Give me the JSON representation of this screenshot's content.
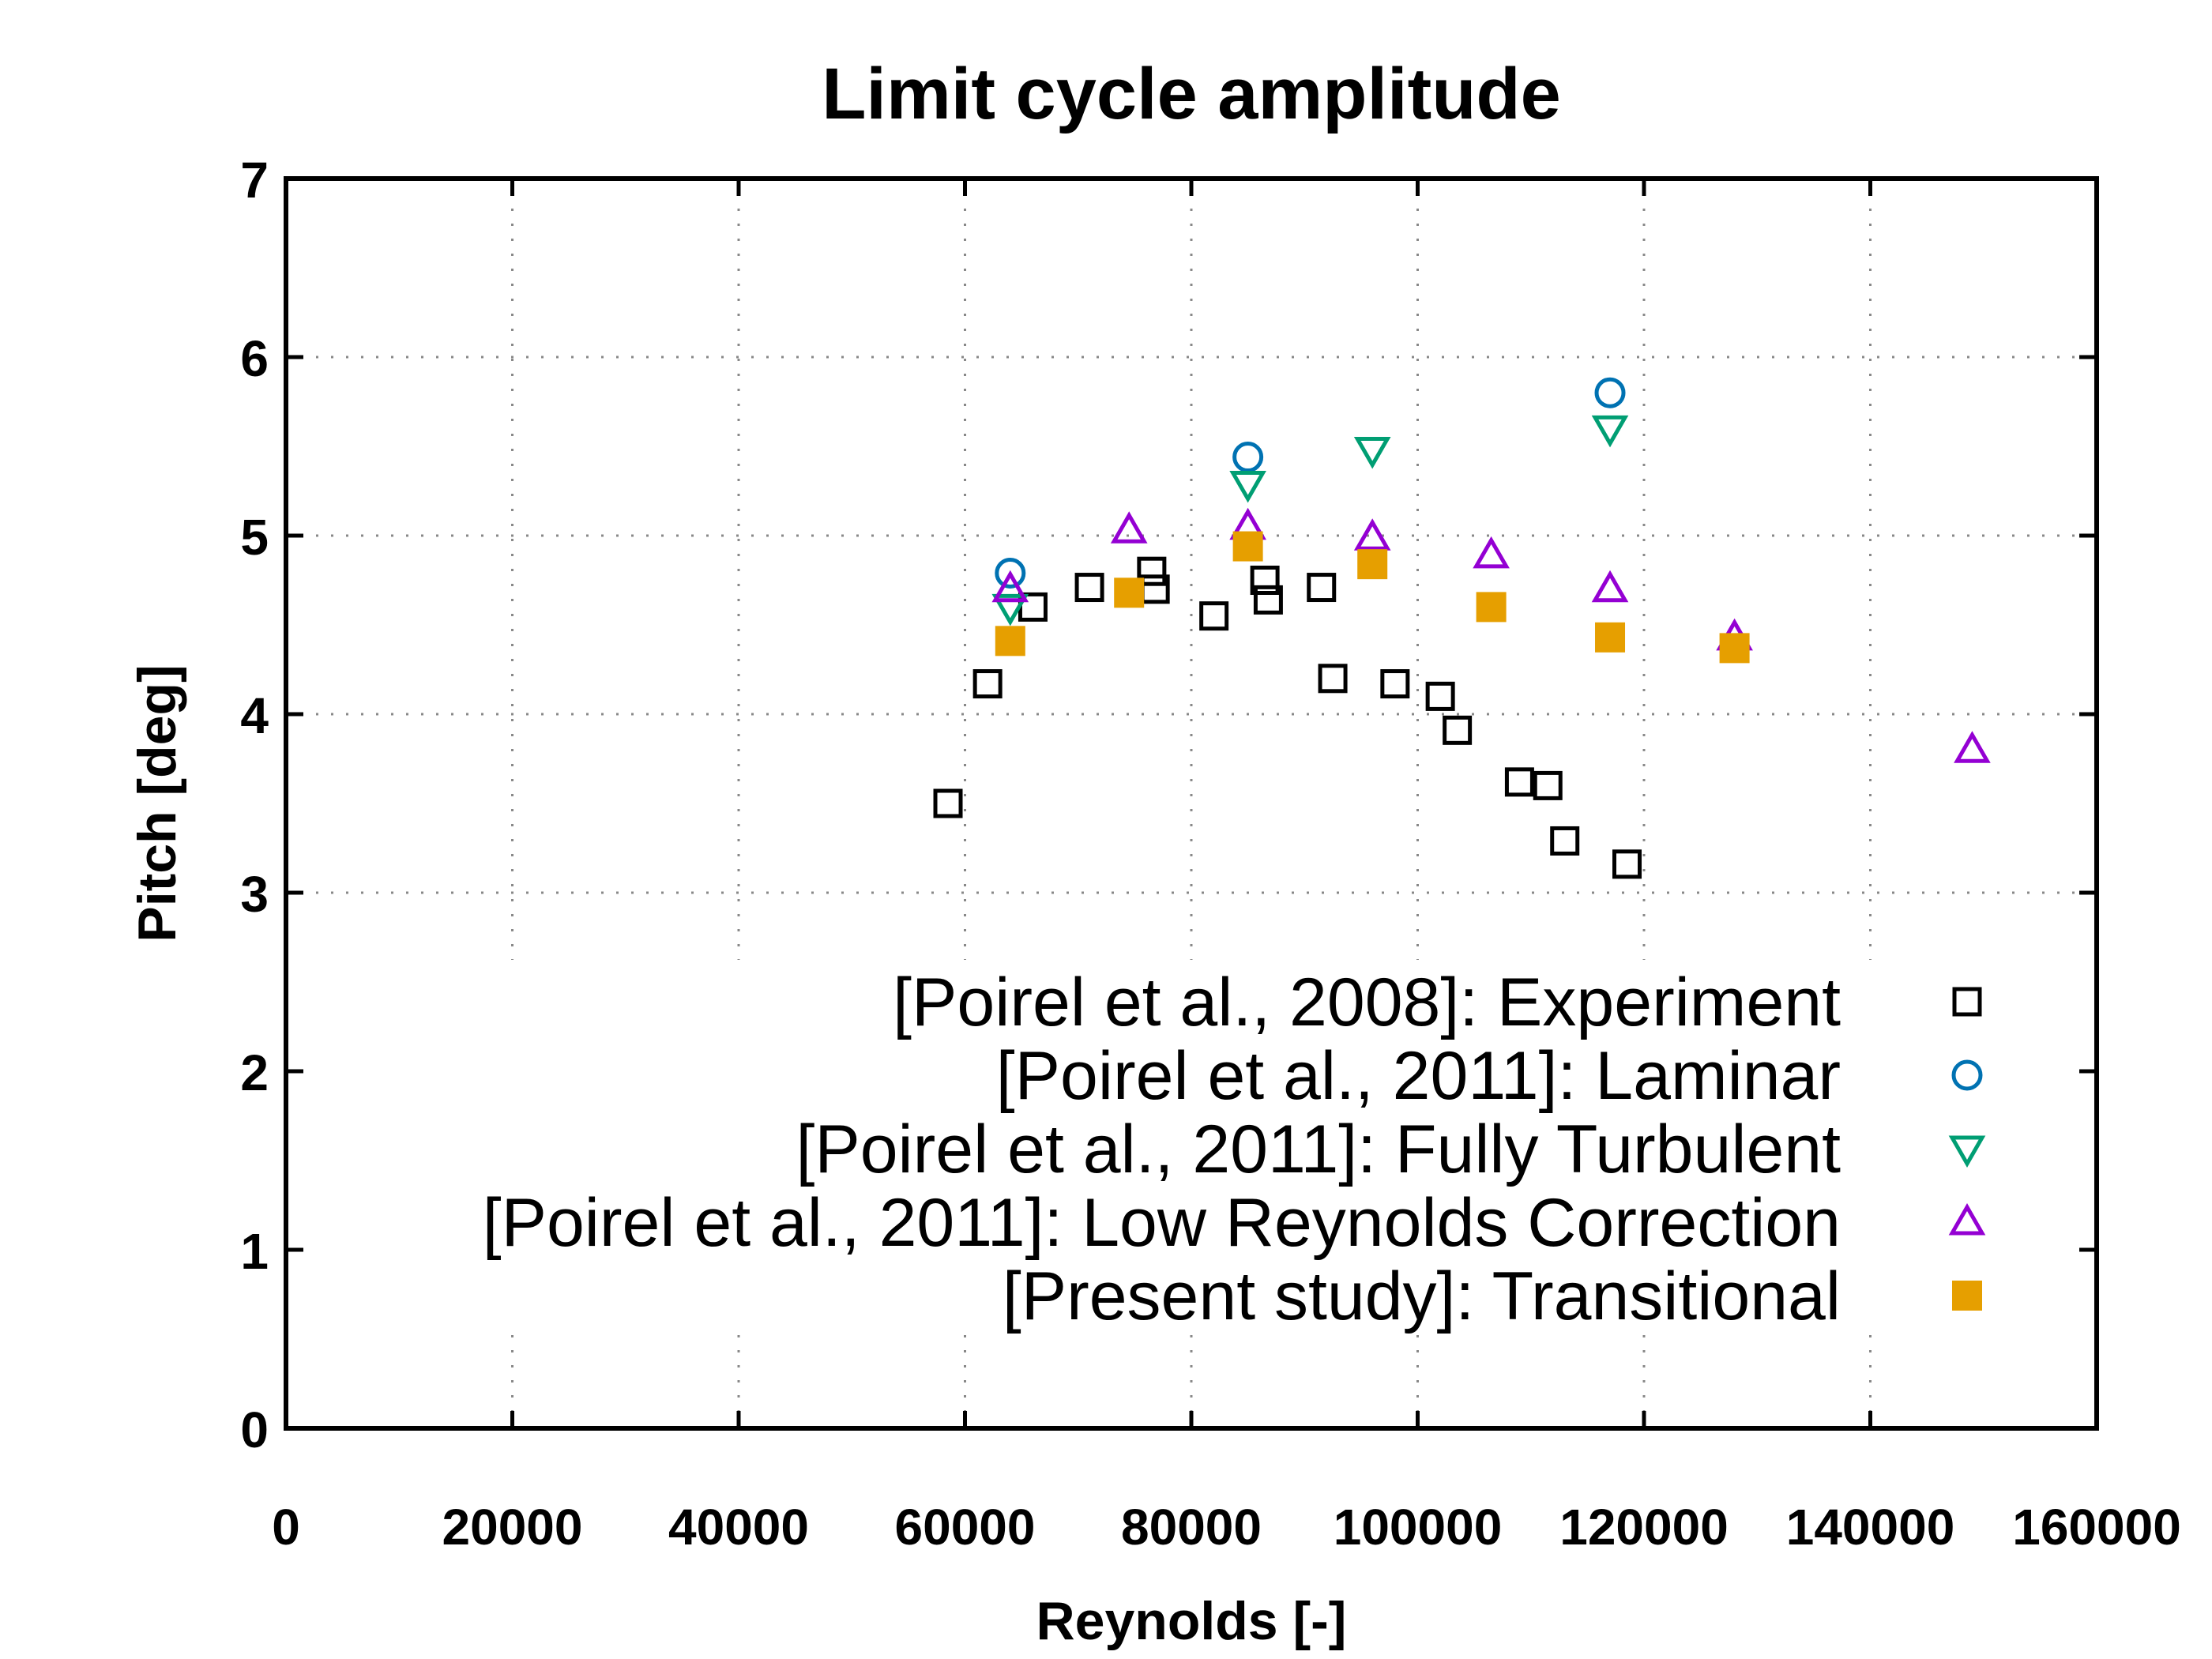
{
  "chart_data": {
    "type": "scatter",
    "title": "Limit cycle amplitude",
    "xlabel": "Reynolds [-]",
    "ylabel": "Pitch [deg]",
    "xlim": [
      0,
      160000
    ],
    "ylim": [
      0,
      7
    ],
    "x_ticks": [
      "0",
      "20000",
      "40000",
      "60000",
      "80000",
      "100000",
      "120000",
      "140000",
      "160000"
    ],
    "y_ticks": [
      "0",
      "1",
      "2",
      "3",
      "4",
      "5",
      "6",
      "7"
    ],
    "grid": true,
    "legend_position": "bottom-right",
    "series": [
      {
        "name": "[Poirel et al., 2008]: Experiment",
        "marker": "open-square",
        "color": "#000000",
        "points": [
          [
            58500,
            3.5
          ],
          [
            62000,
            4.17
          ],
          [
            66000,
            4.6
          ],
          [
            71000,
            4.71
          ],
          [
            76500,
            4.8
          ],
          [
            76800,
            4.7
          ],
          [
            82000,
            4.55
          ],
          [
            86500,
            4.75
          ],
          [
            86800,
            4.64
          ],
          [
            91500,
            4.71
          ],
          [
            92500,
            4.2
          ],
          [
            98000,
            4.17
          ],
          [
            102000,
            4.1
          ],
          [
            103500,
            3.91
          ],
          [
            109000,
            3.62
          ],
          [
            111500,
            3.6
          ],
          [
            113000,
            3.29
          ],
          [
            118500,
            3.16
          ]
        ]
      },
      {
        "name": "[Poirel et al., 2011]: Laminar",
        "marker": "open-circle",
        "color": "#0072B2",
        "points": [
          [
            64000,
            4.79
          ],
          [
            85000,
            5.44
          ],
          [
            117000,
            5.8
          ]
        ]
      },
      {
        "name": "[Poirel et al., 2011]: Fully Turbulent",
        "marker": "open-triangle-down",
        "color": "#009E73",
        "points": [
          [
            64000,
            4.6
          ],
          [
            85000,
            5.29
          ],
          [
            96000,
            5.48
          ],
          [
            117000,
            5.6
          ]
        ]
      },
      {
        "name": "[Poirel et al., 2011]: Low Reynolds Correction",
        "marker": "open-triangle-up",
        "color": "#9400D3",
        "points": [
          [
            64000,
            4.7
          ],
          [
            74500,
            5.03
          ],
          [
            85000,
            5.05
          ],
          [
            96000,
            4.99
          ],
          [
            106500,
            4.89
          ],
          [
            117000,
            4.7
          ],
          [
            128000,
            4.43
          ],
          [
            149000,
            3.8
          ]
        ]
      },
      {
        "name": "[Present study]: Transitional",
        "marker": "filled-square",
        "color": "#E69F00",
        "points": [
          [
            64000,
            4.41
          ],
          [
            74500,
            4.68
          ],
          [
            85000,
            4.94
          ],
          [
            96000,
            4.84
          ],
          [
            106500,
            4.6
          ],
          [
            117000,
            4.43
          ],
          [
            128000,
            4.37
          ]
        ]
      }
    ]
  }
}
